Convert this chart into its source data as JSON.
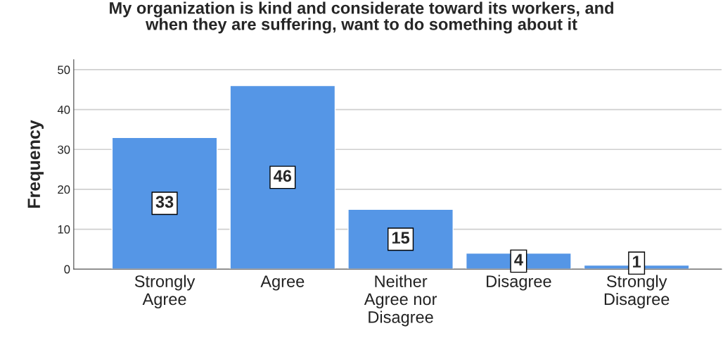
{
  "chart_data": {
    "type": "bar",
    "title": "My organization is kind and considerate toward its workers, and\nwhen they are suffering, want to do something about it",
    "ylabel": "Frequency",
    "categories": [
      "Strongly\nAgree",
      "Agree",
      "Neither\nAgree nor\nDisagree",
      "Disagree",
      "Strongly\nDisagree"
    ],
    "values": [
      33,
      46,
      15,
      4,
      1
    ],
    "color": "#5596e6",
    "ylim": [
      0,
      52.5
    ],
    "yticks": [
      0,
      10,
      20,
      30,
      40,
      50
    ],
    "grid": "y",
    "data_labels": true
  }
}
